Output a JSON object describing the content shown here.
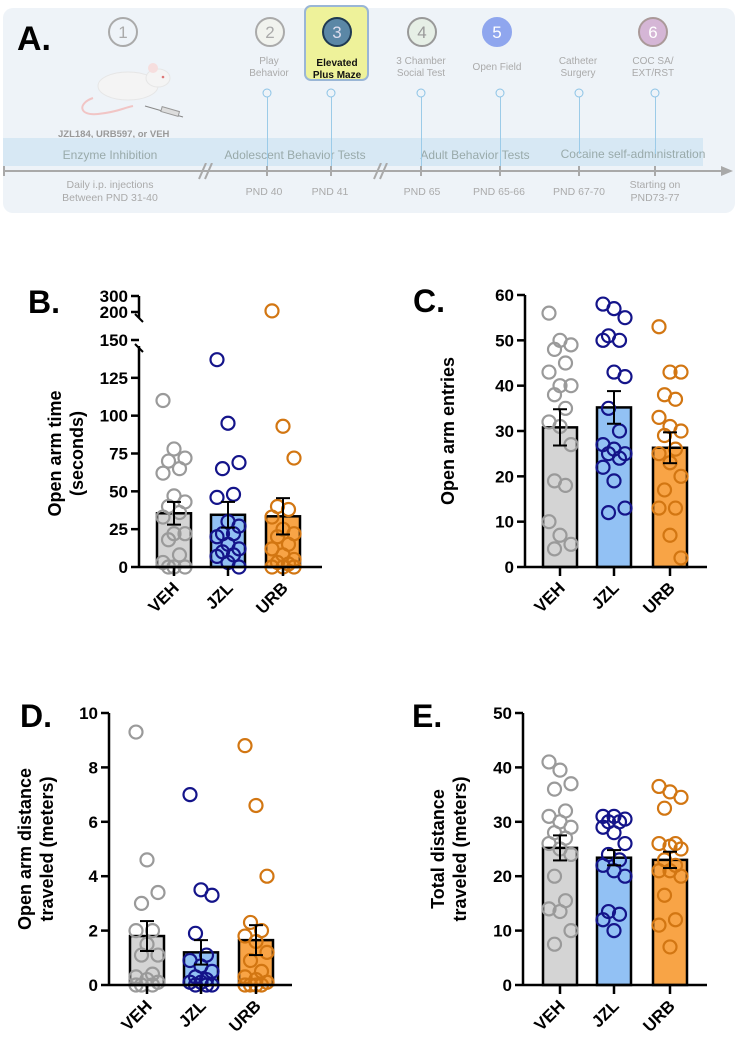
{
  "timeline": {
    "panel_letter": "A.",
    "treatment_label": "JZL184, URB597, or VEH",
    "steps": [
      {
        "num": "1",
        "label": ""
      },
      {
        "num": "2",
        "label": "Play\nBehavior"
      },
      {
        "num": "3",
        "label": "Elevated\nPlus Maze"
      },
      {
        "num": "4",
        "label": "3 Chamber\nSocial Test"
      },
      {
        "num": "5",
        "label": "Open Field"
      },
      {
        "num": "6",
        "label": "COC SA/\nEXT/RST"
      }
    ],
    "extra_label": "Catheter\nSurgery",
    "phases": [
      "Enzyme Inhibition",
      "Adolescent Behavior Tests",
      "Adult Behavior Tests",
      "Cocaine self-administration"
    ],
    "time_labels": [
      "Daily i.p. injections\nBetween PND 31-40",
      "PND 40",
      "PND 41",
      "PND 65",
      "PND 65-66",
      "PND 67-70",
      "Starting on\nPND73-77"
    ],
    "colors": {
      "step3": "#5b87a6",
      "step4": "#e6efe6",
      "step5": "#8fa6ee",
      "step6": "#d5b6d6",
      "highlight": "#eef29a"
    }
  },
  "chart_data": [
    {
      "panel": "B.",
      "type": "bar",
      "ylabel": "Open arm time\n(seconds)",
      "categories": [
        "VEH",
        "JZL",
        "URB"
      ],
      "yticks": [
        "0",
        "25",
        "50",
        "75",
        "100",
        "125",
        "150",
        "200",
        "300"
      ],
      "ytick_values": [
        0,
        25,
        50,
        75,
        100,
        125,
        150,
        200,
        300
      ],
      "ylim": [
        0,
        300
      ],
      "axis_break": [
        150,
        200
      ],
      "means": [
        35.5,
        34.5,
        33.5
      ],
      "sem": [
        7.5,
        8.5,
        12
      ],
      "points": [
        [
          110,
          78,
          72,
          70,
          65,
          62,
          47,
          43,
          40,
          36,
          33,
          22,
          22,
          18,
          8,
          3,
          0,
          0,
          0
        ],
        [
          137,
          95,
          69,
          65,
          48,
          46,
          30,
          27,
          22,
          22,
          20,
          15,
          12,
          10,
          8,
          7,
          3,
          0
        ],
        [
          207,
          93,
          72,
          40,
          38,
          33,
          25,
          22,
          20,
          15,
          12,
          8,
          5,
          3,
          2,
          0,
          0,
          0
        ]
      ]
    },
    {
      "panel": "C.",
      "type": "bar",
      "ylabel": "Open arm entries",
      "categories": [
        "VEH",
        "JZL",
        "URB"
      ],
      "yticks": [
        "0",
        "10",
        "20",
        "30",
        "40",
        "50",
        "60"
      ],
      "ytick_values": [
        0,
        10,
        20,
        30,
        40,
        50,
        60
      ],
      "ylim": [
        0,
        60
      ],
      "means": [
        30.8,
        35.2,
        26.3
      ],
      "sem": [
        4,
        3.6,
        3.4
      ],
      "points": [
        [
          56,
          50,
          49,
          48,
          45,
          43,
          40,
          40,
          38,
          35,
          32,
          31,
          27,
          19,
          18,
          10,
          7,
          5,
          4
        ],
        [
          58,
          57,
          55,
          51,
          50,
          50,
          43,
          42,
          35,
          30,
          27,
          26,
          25,
          25,
          24,
          22,
          19,
          13,
          12
        ],
        [
          53,
          43,
          43,
          38,
          37,
          33,
          31,
          30,
          29,
          26,
          25,
          23,
          20,
          17,
          13,
          13,
          7,
          2
        ]
      ]
    },
    {
      "panel": "D.",
      "type": "bar",
      "ylabel": "Open arm distance\ntraveled (meters)",
      "categories": [
        "VEH",
        "JZL",
        "URB"
      ],
      "yticks": [
        "0",
        "2",
        "4",
        "6",
        "8",
        "10"
      ],
      "ytick_values": [
        0,
        2,
        4,
        6,
        8,
        10
      ],
      "ylim": [
        0,
        10
      ],
      "means": [
        1.8,
        1.2,
        1.65
      ],
      "sem": [
        0.55,
        0.45,
        0.55
      ],
      "points": [
        [
          9.3,
          4.6,
          3.4,
          3.0,
          2.0,
          2.0,
          1.5,
          1.1,
          1.1,
          0.4,
          0.3,
          0.2,
          0.1,
          0,
          0,
          0
        ],
        [
          7.0,
          3.5,
          3.3,
          1.9,
          1.1,
          0.9,
          0.7,
          0.5,
          0.3,
          0.2,
          0.1,
          0.1,
          0,
          0,
          0
        ],
        [
          8.8,
          6.6,
          4.0,
          2.3,
          2.0,
          1.8,
          1.6,
          1.2,
          0.9,
          0.5,
          0.3,
          0.2,
          0.1,
          0,
          0,
          0,
          0
        ]
      ]
    },
    {
      "panel": "E.",
      "type": "bar",
      "ylabel": "Total distance\ntraveled (meters)",
      "categories": [
        "VEH",
        "JZL",
        "URB"
      ],
      "yticks": [
        "0",
        "10",
        "20",
        "30",
        "40",
        "50"
      ],
      "ytick_values": [
        0,
        10,
        20,
        30,
        40,
        50
      ],
      "ylim": [
        0,
        50
      ],
      "means": [
        25.2,
        23.4,
        23
      ],
      "sem": [
        2.3,
        1.4,
        1.5
      ],
      "points": [
        [
          41,
          39.5,
          37,
          36,
          32,
          31,
          30,
          29,
          28,
          27,
          26,
          25,
          24,
          20,
          15.5,
          14,
          13.5,
          10,
          7.5
        ],
        [
          31,
          31,
          30.5,
          30,
          30,
          29,
          28,
          26,
          24,
          23,
          22,
          21,
          20,
          13.5,
          13,
          12,
          10
        ],
        [
          36.5,
          35.5,
          34.5,
          32.5,
          26,
          26,
          25.5,
          25,
          23,
          22,
          21,
          21,
          20,
          16.5,
          12,
          11,
          7
        ]
      ]
    }
  ],
  "group_colors": {
    "bar": [
      "#d4d4d4",
      "#92c1f4",
      "#f8a446"
    ],
    "point": [
      "#9a9a9a",
      "#14148a",
      "#d27612"
    ]
  }
}
